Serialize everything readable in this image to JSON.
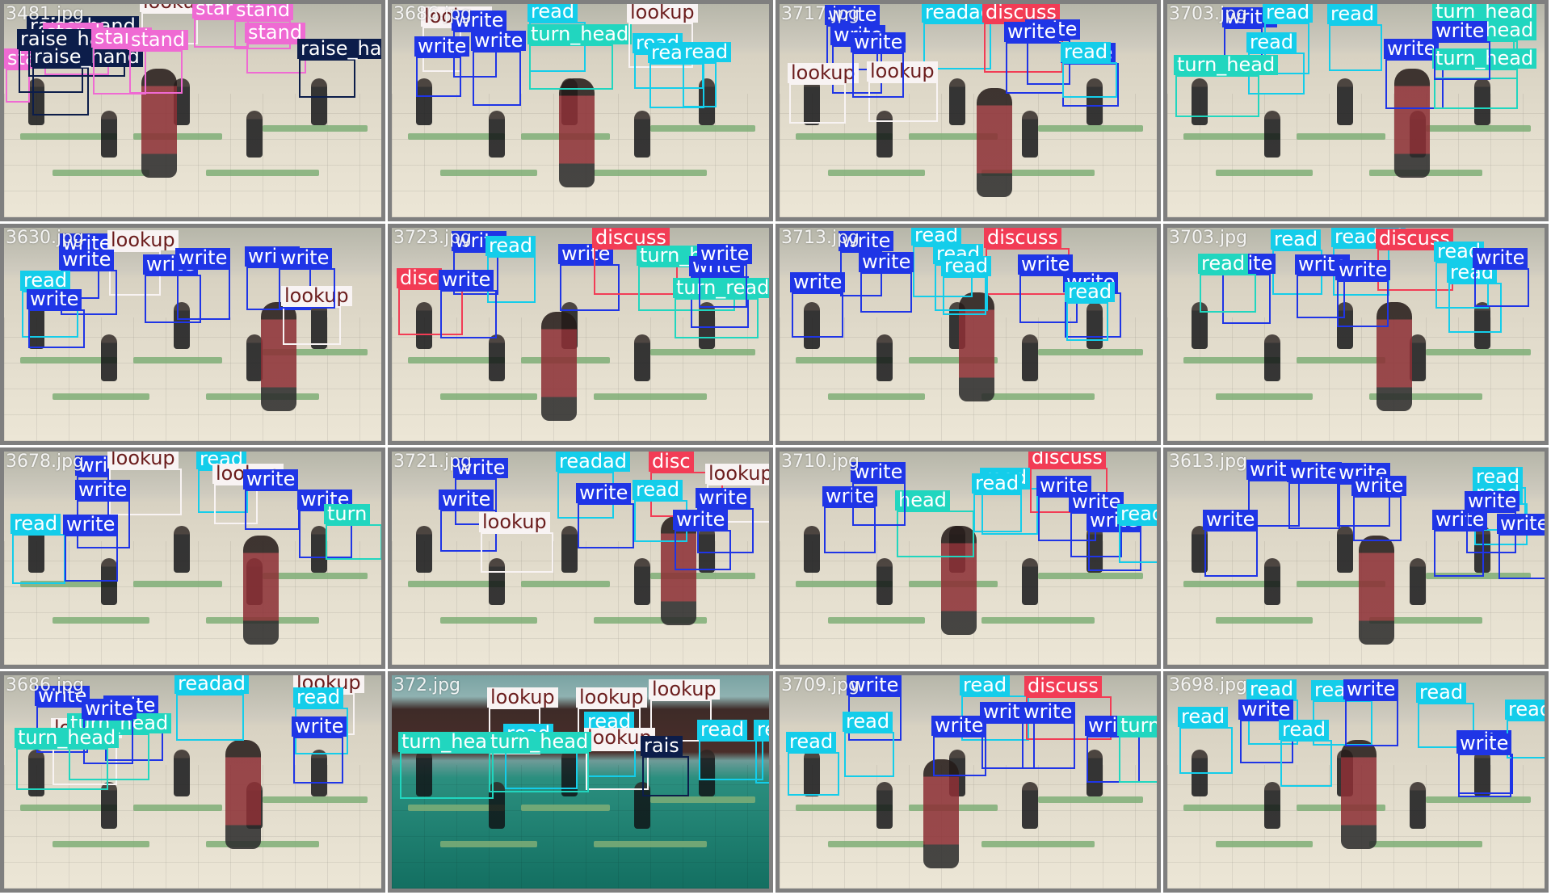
{
  "palette": {
    "write": "#1f35e6",
    "read": "#14cdea",
    "lookup": "#f8f3f3",
    "turn_head": "#21d6bf",
    "discuss": "#f23c55",
    "raise_hand": "#0c1d4a",
    "stand": "#ef6ad3"
  },
  "text_colors": {
    "write": "#ffffff",
    "read": "#ffffff",
    "lookup": "#6b1d1d",
    "turn_head": "#ffffff",
    "discuss": "#ffffff",
    "raise_hand": "#ffffff",
    "stand": "#ffffff"
  },
  "tiles": [
    {
      "label": "3481.jpg",
      "bg": "classroom",
      "detections": [
        {
          "cls": "stand",
          "label": "stand"
        },
        {
          "cls": "raise_hand",
          "label": "raise_hand"
        },
        {
          "cls": "lookup",
          "label": "lookup"
        },
        {
          "cls": "stand",
          "label": "stand"
        },
        {
          "cls": "stand",
          "label": "stand"
        },
        {
          "cls": "stand",
          "label": "stand"
        },
        {
          "cls": "stand",
          "label": "stand"
        },
        {
          "cls": "raise_hand",
          "label": "raise_hand"
        },
        {
          "cls": "raise_hand",
          "label": "raise_hand"
        },
        {
          "cls": "raise_hand",
          "label": "raise_hand"
        },
        {
          "cls": "stand",
          "label": "stand"
        },
        {
          "cls": "stand",
          "label": "stand"
        }
      ]
    },
    {
      "label": "3686.jpg",
      "bg": "classroom",
      "detections": [
        {
          "cls": "lookup",
          "label": "lookup"
        },
        {
          "cls": "write",
          "label": "write"
        },
        {
          "cls": "read",
          "label": "read"
        },
        {
          "cls": "turn_head",
          "label": "turn_head"
        },
        {
          "cls": "lookup",
          "label": "lookup"
        },
        {
          "cls": "read",
          "label": "read"
        },
        {
          "cls": "write",
          "label": "write"
        },
        {
          "cls": "write",
          "label": "write"
        },
        {
          "cls": "read",
          "label": "read"
        },
        {
          "cls": "read",
          "label": "read"
        }
      ]
    },
    {
      "label": "3717.jpg",
      "bg": "classroom",
      "detections": [
        {
          "cls": "write",
          "label": "write"
        },
        {
          "cls": "read",
          "label": "readad"
        },
        {
          "cls": "discuss",
          "label": "discuss"
        },
        {
          "cls": "write",
          "label": "write"
        },
        {
          "cls": "write",
          "label": "write"
        },
        {
          "cls": "lookup",
          "label": "lookup"
        },
        {
          "cls": "write",
          "label": "write"
        },
        {
          "cls": "write",
          "label": "write"
        },
        {
          "cls": "read",
          "label": "read"
        },
        {
          "cls": "lookup",
          "label": "lookup"
        },
        {
          "cls": "write",
          "label": "write"
        }
      ]
    },
    {
      "label": "3703.jpg",
      "bg": "classroom",
      "detections": [
        {
          "cls": "write",
          "label": "write"
        },
        {
          "cls": "read",
          "label": "read"
        },
        {
          "cls": "read",
          "label": "read"
        },
        {
          "cls": "turn_head",
          "label": "turn_head"
        },
        {
          "cls": "write",
          "label": "write"
        },
        {
          "cls": "turn_head",
          "label": "turn_head"
        },
        {
          "cls": "read",
          "label": "read"
        },
        {
          "cls": "turn_head",
          "label": "turn_head"
        },
        {
          "cls": "turn_head",
          "label": "turn_head"
        },
        {
          "cls": "write",
          "label": "write"
        }
      ]
    },
    {
      "label": "3630.jpg",
      "bg": "classroom",
      "detections": [
        {
          "cls": "write",
          "label": "write"
        },
        {
          "cls": "lookup",
          "label": "lookup"
        },
        {
          "cls": "write",
          "label": "write"
        },
        {
          "cls": "write",
          "label": "write"
        },
        {
          "cls": "write",
          "label": "write"
        },
        {
          "cls": "write",
          "label": "write"
        },
        {
          "cls": "read",
          "label": "read"
        },
        {
          "cls": "write",
          "label": "write"
        },
        {
          "cls": "lookup",
          "label": "lookup"
        },
        {
          "cls": "write",
          "label": "write"
        }
      ]
    },
    {
      "label": "3723.jpg",
      "bg": "classroom",
      "detections": [
        {
          "cls": "write",
          "label": "write"
        },
        {
          "cls": "read",
          "label": "read"
        },
        {
          "cls": "write",
          "label": "write"
        },
        {
          "cls": "discuss",
          "label": "discuss"
        },
        {
          "cls": "turn_head",
          "label": "turn_head"
        },
        {
          "cls": "discuss",
          "label": "disc"
        },
        {
          "cls": "write",
          "label": "write"
        },
        {
          "cls": "write",
          "label": "write"
        },
        {
          "cls": "turn_head",
          "label": "turn_read"
        },
        {
          "cls": "write",
          "label": "write"
        }
      ]
    },
    {
      "label": "3713.jpg",
      "bg": "classroom",
      "detections": [
        {
          "cls": "write",
          "label": "write"
        },
        {
          "cls": "read",
          "label": "read"
        },
        {
          "cls": "discuss",
          "label": "discuss"
        },
        {
          "cls": "read",
          "label": "read"
        },
        {
          "cls": "write",
          "label": "write"
        },
        {
          "cls": "write",
          "label": "write"
        },
        {
          "cls": "read",
          "label": "read"
        },
        {
          "cls": "write",
          "label": "write"
        },
        {
          "cls": "write",
          "label": "write"
        },
        {
          "cls": "read",
          "label": "read"
        }
      ]
    },
    {
      "label": "3703.jpg",
      "bg": "classroom",
      "detections": [
        {
          "cls": "read",
          "label": "read"
        },
        {
          "cls": "read",
          "label": "readad"
        },
        {
          "cls": "discuss",
          "label": "discuss"
        },
        {
          "cls": "write",
          "label": "write"
        },
        {
          "cls": "read",
          "label": "read"
        },
        {
          "cls": "write",
          "label": "write"
        },
        {
          "cls": "write",
          "label": "write"
        },
        {
          "cls": "read",
          "label": "read"
        },
        {
          "cls": "write",
          "label": "write"
        },
        {
          "cls": "turn_head",
          "label": "read"
        }
      ]
    },
    {
      "label": "3678.jpg",
      "bg": "classroom",
      "detections": [
        {
          "cls": "write",
          "label": "wri"
        },
        {
          "cls": "lookup",
          "label": "lookup"
        },
        {
          "cls": "read",
          "label": "read"
        },
        {
          "cls": "lookup",
          "label": "lookup"
        },
        {
          "cls": "write",
          "label": "write"
        },
        {
          "cls": "write",
          "label": "write"
        },
        {
          "cls": "read",
          "label": "read"
        },
        {
          "cls": "write",
          "label": "write"
        },
        {
          "cls": "turn_head",
          "label": "turn"
        },
        {
          "cls": "write",
          "label": "write"
        }
      ]
    },
    {
      "label": "3721.jpg",
      "bg": "classroom",
      "detections": [
        {
          "cls": "write",
          "label": "write"
        },
        {
          "cls": "read",
          "label": "readad"
        },
        {
          "cls": "discuss",
          "label": "disc"
        },
        {
          "cls": "lookup",
          "label": "lookup"
        },
        {
          "cls": "write",
          "label": "write"
        },
        {
          "cls": "write",
          "label": "write"
        },
        {
          "cls": "write",
          "label": "write"
        },
        {
          "cls": "read",
          "label": "read"
        },
        {
          "cls": "lookup",
          "label": "lookup"
        },
        {
          "cls": "write",
          "label": "write"
        }
      ]
    },
    {
      "label": "3710.jpg",
      "bg": "classroom",
      "detections": [
        {
          "cls": "write",
          "label": "write"
        },
        {
          "cls": "read",
          "label": "read"
        },
        {
          "cls": "discuss",
          "label": "discuss"
        },
        {
          "cls": "write",
          "label": "write"
        },
        {
          "cls": "turn_head",
          "label": "head"
        },
        {
          "cls": "write",
          "label": "write"
        },
        {
          "cls": "write",
          "label": "write"
        },
        {
          "cls": "read",
          "label": "read"
        },
        {
          "cls": "write",
          "label": "write"
        },
        {
          "cls": "read",
          "label": "read"
        }
      ]
    },
    {
      "label": "3613.jpg",
      "bg": "classroom",
      "detections": [
        {
          "cls": "write",
          "label": "write"
        },
        {
          "cls": "write",
          "label": "write"
        },
        {
          "cls": "read",
          "label": "read"
        },
        {
          "cls": "write",
          "label": "write"
        },
        {
          "cls": "write",
          "label": "write"
        },
        {
          "cls": "read",
          "label": "read"
        },
        {
          "cls": "write",
          "label": "write"
        },
        {
          "cls": "write",
          "label": "write"
        },
        {
          "cls": "write",
          "label": "write"
        },
        {
          "cls": "write",
          "label": "write"
        }
      ]
    },
    {
      "label": "3686.jpg",
      "bg": "classroom",
      "detections": [
        {
          "cls": "write",
          "label": "write"
        },
        {
          "cls": "read",
          "label": "readad"
        },
        {
          "cls": "lookup",
          "label": "lookup"
        },
        {
          "cls": "write",
          "label": "write"
        },
        {
          "cls": "lookup",
          "label": "lookup"
        },
        {
          "cls": "read",
          "label": "read"
        },
        {
          "cls": "turn_head",
          "label": "turn_head"
        },
        {
          "cls": "write",
          "label": "write"
        },
        {
          "cls": "write",
          "label": "write"
        },
        {
          "cls": "turn_head",
          "label": "turn_head"
        }
      ]
    },
    {
      "label": "372.jpg",
      "bg": "green",
      "detections": [
        {
          "cls": "lookup",
          "label": "lookup"
        },
        {
          "cls": "lookup",
          "label": "lookup"
        },
        {
          "cls": "lookup",
          "label": "lookup"
        },
        {
          "cls": "read",
          "label": "read"
        },
        {
          "cls": "turn_head",
          "label": "turn_head"
        },
        {
          "cls": "read",
          "label": "read"
        },
        {
          "cls": "lookup",
          "label": "lookup"
        },
        {
          "cls": "read",
          "label": "read"
        },
        {
          "cls": "raise_hand",
          "label": "rais"
        },
        {
          "cls": "turn_head",
          "label": "turn_head"
        },
        {
          "cls": "read",
          "label": "read"
        }
      ]
    },
    {
      "label": "3709.jpg",
      "bg": "classroom",
      "detections": [
        {
          "cls": "write",
          "label": "write"
        },
        {
          "cls": "read",
          "label": "read"
        },
        {
          "cls": "discuss",
          "label": "discuss"
        },
        {
          "cls": "write",
          "label": "write"
        },
        {
          "cls": "write",
          "label": "write"
        },
        {
          "cls": "read",
          "label": "read"
        },
        {
          "cls": "write",
          "label": "write"
        },
        {
          "cls": "turn_head",
          "label": "turn"
        },
        {
          "cls": "read",
          "label": "read"
        },
        {
          "cls": "write",
          "label": "write"
        }
      ]
    },
    {
      "label": "3698.jpg",
      "bg": "classroom",
      "detections": [
        {
          "cls": "read",
          "label": "read"
        },
        {
          "cls": "read",
          "label": "read"
        },
        {
          "cls": "write",
          "label": "write"
        },
        {
          "cls": "read",
          "label": "read"
        },
        {
          "cls": "read",
          "label": "read"
        },
        {
          "cls": "write",
          "label": "write"
        },
        {
          "cls": "read",
          "label": "read"
        },
        {
          "cls": "write",
          "label": "write"
        },
        {
          "cls": "read",
          "label": "read"
        },
        {
          "cls": "write",
          "label": "write"
        }
      ]
    }
  ]
}
